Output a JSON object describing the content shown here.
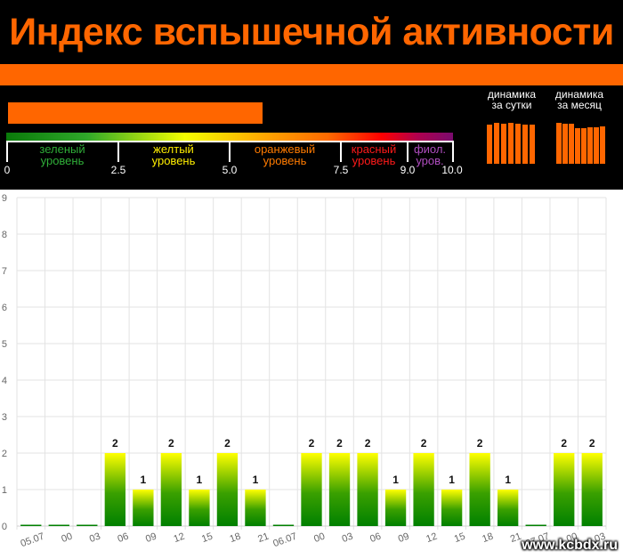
{
  "header": {
    "title": "Индекс вспышечной активности",
    "current_level_fraction": 0.57
  },
  "scale": {
    "ticks": [
      "0",
      "2.5",
      "5.0",
      "7.5",
      "9.0",
      "10.0"
    ],
    "zones": [
      {
        "line1": "зеленый",
        "line2": "уровень",
        "color": "#2fae38"
      },
      {
        "line1": "желтый",
        "line2": "уровень",
        "color": "#ffee00"
      },
      {
        "line1": "оранжевый",
        "line2": "уровень",
        "color": "#ff7b00"
      },
      {
        "line1": "красный",
        "line2": "уровень",
        "color": "#ff1a1a"
      },
      {
        "line1": "фиол.",
        "line2": "уров.",
        "color": "#b04dc0"
      }
    ]
  },
  "dynamics": {
    "day": {
      "line1": "динамика",
      "line2": "за сутки",
      "levels": [
        0.95,
        1.0,
        0.97,
        1.0,
        0.97,
        0.95,
        0.95
      ]
    },
    "month": {
      "line1": "динамика",
      "line2": "за месяц",
      "levels": [
        1.0,
        0.97,
        0.97,
        0.88,
        0.88,
        0.9,
        0.9,
        0.92
      ]
    }
  },
  "colors": {
    "accent": "#ff6600",
    "bar_top": "#ffff00",
    "bar_bottom": "#008000"
  },
  "chart_data": {
    "type": "bar",
    "categories": [
      "05.07",
      "00",
      "03",
      "06",
      "09",
      "12",
      "15",
      "18",
      "21",
      "06.07",
      "00",
      "03",
      "06",
      "09",
      "12",
      "15",
      "18",
      "21",
      "07.07",
      "00",
      "03"
    ],
    "values": [
      0,
      0,
      0,
      2,
      1,
      2,
      1,
      2,
      1,
      0,
      2,
      2,
      2,
      1,
      2,
      1,
      2,
      1,
      0,
      2,
      2
    ],
    "y_ticks": [
      "0",
      "1",
      "2",
      "3",
      "4",
      "5",
      "6",
      "7",
      "8",
      "9"
    ],
    "ylim": [
      0,
      9
    ],
    "grid": true
  },
  "watermark": "www.kcbdx.ru"
}
